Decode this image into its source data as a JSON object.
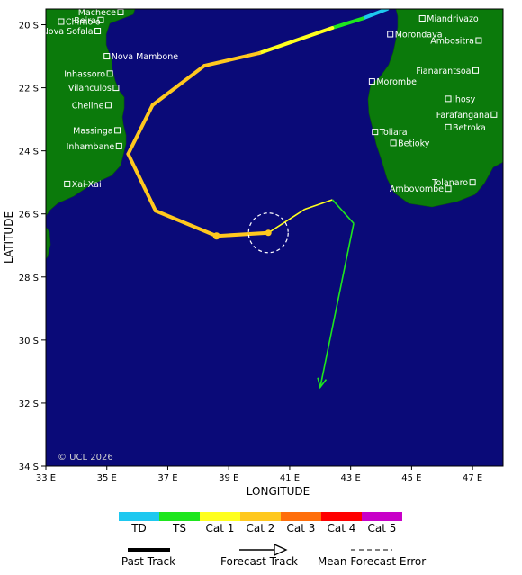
{
  "map": {
    "xlabel": "LONGITUDE",
    "ylabel": "LATITUDE",
    "copyright": "© UCL 2026",
    "lon_range": [
      33,
      48
    ],
    "lat_range": [
      -19.5,
      -34
    ],
    "lon_ticks": [
      {
        "value": 33,
        "label": "33 E"
      },
      {
        "value": 35,
        "label": "35 E"
      },
      {
        "value": 37,
        "label": "37 E"
      },
      {
        "value": 39,
        "label": "39 E"
      },
      {
        "value": 41,
        "label": "41 E"
      },
      {
        "value": 43,
        "label": "43 E"
      },
      {
        "value": 45,
        "label": "45 E"
      },
      {
        "value": 47,
        "label": "47 E"
      }
    ],
    "lat_ticks": [
      {
        "value": -20,
        "label": "20 S"
      },
      {
        "value": -22,
        "label": "22 S"
      },
      {
        "value": -24,
        "label": "24 S"
      },
      {
        "value": -26,
        "label": "26 S"
      },
      {
        "value": -28,
        "label": "28 S"
      },
      {
        "value": -30,
        "label": "30 S"
      },
      {
        "value": -32,
        "label": "32 S"
      },
      {
        "value": -34,
        "label": "34 S"
      }
    ],
    "colors": {
      "ocean": "#0a0a78",
      "land": "#0b7a0b",
      "TD": "#1ec8f0",
      "TS": "#1ee61e",
      "Cat1": "#ffff1e",
      "Cat2": "#ffc81e",
      "Cat3": "#ff6e0a",
      "Cat4": "#ff0000",
      "Cat5": "#c800c8"
    },
    "cities": [
      {
        "name": "Machece",
        "lon": 35.45,
        "lat": -19.6,
        "side": "left"
      },
      {
        "name": "Chimoio",
        "lon": 33.5,
        "lat": -19.9,
        "side": "right"
      },
      {
        "name": "Beira",
        "lon": 34.8,
        "lat": -19.85,
        "side": "left"
      },
      {
        "name": "Nova Sofala",
        "lon": 34.7,
        "lat": -20.2,
        "side": "left"
      },
      {
        "name": "Nova Mambone",
        "lon": 35.0,
        "lat": -21.0,
        "side": "right"
      },
      {
        "name": "Inhassoro",
        "lon": 35.1,
        "lat": -21.55,
        "side": "left"
      },
      {
        "name": "Vilanculos",
        "lon": 35.3,
        "lat": -22.0,
        "side": "left"
      },
      {
        "name": "Cheline",
        "lon": 35.05,
        "lat": -22.55,
        "side": "left"
      },
      {
        "name": "Massinga",
        "lon": 35.35,
        "lat": -23.35,
        "side": "left"
      },
      {
        "name": "Inhambane",
        "lon": 35.4,
        "lat": -23.85,
        "side": "left"
      },
      {
        "name": "Xai-Xai",
        "lon": 33.7,
        "lat": -25.05,
        "side": "right"
      },
      {
        "name": "Miandrivazo",
        "lon": 45.35,
        "lat": -19.8,
        "side": "right"
      },
      {
        "name": "Morondava",
        "lon": 44.3,
        "lat": -20.3,
        "side": "right"
      },
      {
        "name": "Ambositra",
        "lon": 47.2,
        "lat": -20.5,
        "side": "left"
      },
      {
        "name": "Morombe",
        "lon": 43.7,
        "lat": -21.8,
        "side": "right"
      },
      {
        "name": "Fianarantsoa",
        "lon": 47.1,
        "lat": -21.45,
        "side": "left"
      },
      {
        "name": "Ihosy",
        "lon": 46.2,
        "lat": -22.35,
        "side": "right"
      },
      {
        "name": "Farafangana",
        "lon": 47.7,
        "lat": -22.85,
        "side": "left"
      },
      {
        "name": "Betroka",
        "lon": 46.2,
        "lat": -23.25,
        "side": "right"
      },
      {
        "name": "Toliara",
        "lon": 43.8,
        "lat": -23.4,
        "side": "right"
      },
      {
        "name": "Betioky",
        "lon": 44.4,
        "lat": -23.75,
        "side": "right"
      },
      {
        "name": "Tolanaro",
        "lon": 47.0,
        "lat": -25.0,
        "side": "left"
      },
      {
        "name": "Ambovombe",
        "lon": 46.2,
        "lat": -25.2,
        "side": "left"
      }
    ],
    "past_track": [
      {
        "lon": 44.2,
        "lat": -19.5,
        "cat": "TD"
      },
      {
        "lon": 43.4,
        "lat": -19.8,
        "cat": "TD"
      },
      {
        "lon": 42.4,
        "lat": -20.1,
        "cat": "TS"
      },
      {
        "lon": 40.0,
        "lat": -20.9,
        "cat": "Cat1"
      },
      {
        "lon": 38.2,
        "lat": -21.3,
        "cat": "Cat2"
      },
      {
        "lon": 36.5,
        "lat": -22.55,
        "cat": "Cat2"
      },
      {
        "lon": 35.7,
        "lat": -24.1,
        "cat": "Cat2"
      },
      {
        "lon": 36.6,
        "lat": -25.9,
        "cat": "Cat2"
      },
      {
        "lon": 38.6,
        "lat": -26.7,
        "cat": "Cat2"
      },
      {
        "lon": 40.3,
        "lat": -26.6,
        "cat": "Cat2"
      }
    ],
    "forecast_track": [
      {
        "lon": 40.3,
        "lat": -26.6,
        "cat": "Cat1"
      },
      {
        "lon": 41.5,
        "lat": -25.85,
        "cat": "Cat1"
      },
      {
        "lon": 42.4,
        "lat": -25.55,
        "cat": "Cat1"
      },
      {
        "lon": 43.1,
        "lat": -26.3,
        "cat": "TS"
      },
      {
        "lon": 42.0,
        "lat": -31.5,
        "cat": "TS"
      }
    ],
    "current_position": {
      "lon": 40.3,
      "lat": -26.6
    },
    "error_circle": {
      "lon": 40.3,
      "lat": -26.6,
      "radius_deg": 0.65
    }
  },
  "legend": {
    "categories": [
      {
        "label": "TD",
        "key": "TD"
      },
      {
        "label": "TS",
        "key": "TS"
      },
      {
        "label": "Cat 1",
        "key": "Cat1"
      },
      {
        "label": "Cat 2",
        "key": "Cat2"
      },
      {
        "label": "Cat 3",
        "key": "Cat3"
      },
      {
        "label": "Cat 4",
        "key": "Cat4"
      },
      {
        "label": "Cat 5",
        "key": "Cat5"
      }
    ],
    "past_track_label": "Past Track",
    "forecast_track_label": "Forecast Track",
    "error_label": "Mean Forecast Error"
  }
}
